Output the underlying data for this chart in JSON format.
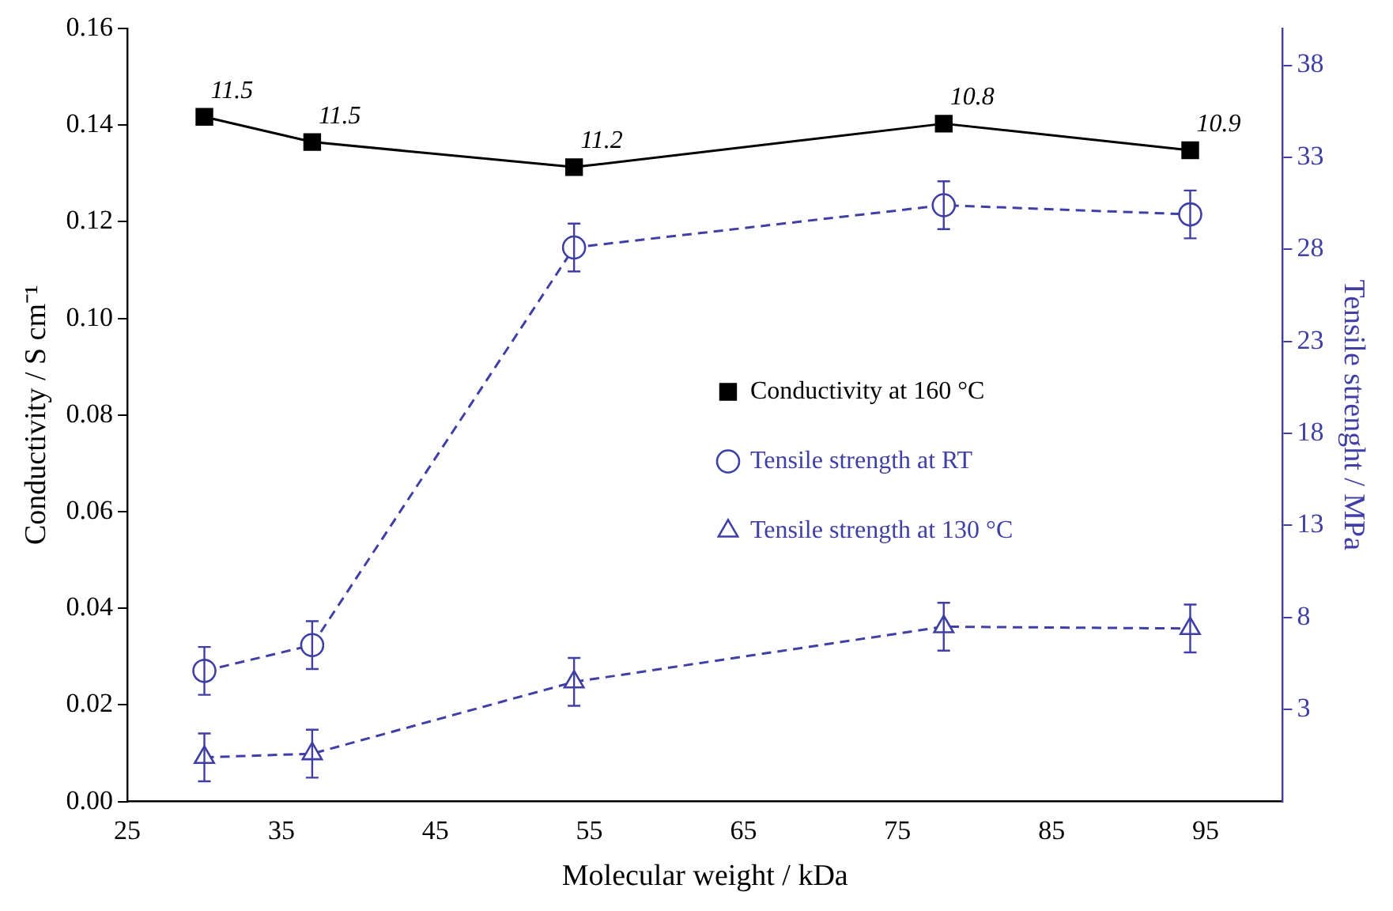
{
  "chart_data": {
    "type": "line",
    "xlabel": "Molecular weight / kDa",
    "ylabel": "Conductivity / S cm⁻¹",
    "y2label": "Tensile strenght / MPa",
    "x": [
      30,
      37,
      54,
      78,
      94
    ],
    "xlim": [
      25,
      100
    ],
    "xticks": [
      25,
      35,
      45,
      55,
      65,
      75,
      85,
      95
    ],
    "ylim": [
      0,
      0.16
    ],
    "yticks": [
      {
        "value": 0,
        "label": "0.00"
      },
      {
        "value": 0.02,
        "label": "0.02"
      },
      {
        "value": 0.04,
        "label": "0.04"
      },
      {
        "value": 0.06,
        "label": "0.06"
      },
      {
        "value": 0.08,
        "label": "0.08"
      },
      {
        "value": 0.1,
        "label": "0.10"
      },
      {
        "value": 0.12,
        "label": "0.12"
      },
      {
        "value": 0.14,
        "label": "0.14"
      },
      {
        "value": 0.16,
        "label": "0.16"
      }
    ],
    "y2lim": [
      -2,
      40
    ],
    "y2ticks": [
      3,
      8,
      13,
      18,
      23,
      28,
      33,
      38
    ],
    "grid": false,
    "legend": "right",
    "series": [
      {
        "name": "Conductivity at 160 °C",
        "color": "#000000",
        "values": [
          0.1417,
          0.1365,
          0.1313,
          0.1403,
          0.1348
        ],
        "marker": "square",
        "line_style": "solid"
      },
      {
        "name": "Tensile strength at RT",
        "color": "#3f3fa6",
        "axis": "y2",
        "values": [
          5.1,
          6.5,
          28.1,
          30.4,
          29.9
        ],
        "errors": [
          1.3,
          1.3,
          1.3,
          1.3,
          1.3
        ],
        "marker": "circle",
        "line_style": "dashed"
      },
      {
        "name": "Tensile strength at 130 °C",
        "color": "#3f3fa6",
        "axis": "y2",
        "values": [
          0.4,
          0.6,
          4.5,
          7.5,
          7.4
        ],
        "errors": [
          1.3,
          1.3,
          1.3,
          1.3,
          1.3
        ],
        "marker": "triangle",
        "line_style": "dashed"
      }
    ],
    "annotations": [
      {
        "text": "11.5",
        "x": 30,
        "y": 0.1417
      },
      {
        "text": "11.5",
        "x": 37,
        "y": 0.1365
      },
      {
        "text": "11.2",
        "x": 54,
        "y": 0.1313
      },
      {
        "text": "10.8",
        "x": 78,
        "y": 0.1403
      },
      {
        "text": "10.9",
        "x": 94,
        "y": 0.1348
      }
    ]
  }
}
